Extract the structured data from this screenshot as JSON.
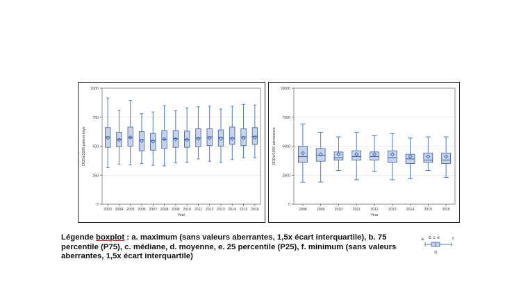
{
  "colors": {
    "box_fill": "#c6d3ea",
    "box_stroke": "#3f5f97",
    "whisker": "#4e79b9",
    "mean_marker": "#2a58b8",
    "grid": "#e4e4e4",
    "frame": "#222222"
  },
  "chart_data": [
    {
      "type": "boxplot",
      "xlabel": "Year",
      "ylabel": "DDDs/1000 patient days",
      "ylim": [
        0,
        1000
      ],
      "yticks": [
        "0",
        "250",
        "500",
        "750",
        "1000"
      ],
      "grid": true,
      "categories": [
        "2003",
        "2004",
        "2005",
        "2006",
        "2007",
        "2008",
        "2009",
        "2010",
        "2011",
        "2012",
        "2013",
        "2014",
        "2015",
        "2016"
      ],
      "series": [
        {
          "max": [
            915,
            810,
            895,
            780,
            795,
            850,
            805,
            830,
            840,
            845,
            820,
            845,
            860,
            855
          ],
          "q3": [
            660,
            620,
            665,
            625,
            610,
            635,
            635,
            630,
            650,
            650,
            640,
            665,
            650,
            660
          ],
          "median": [
            580,
            560,
            575,
            555,
            550,
            560,
            565,
            560,
            570,
            580,
            575,
            570,
            580,
            585
          ],
          "mean": [
            570,
            555,
            575,
            545,
            540,
            560,
            560,
            555,
            565,
            570,
            565,
            565,
            570,
            575
          ],
          "q1": [
            490,
            495,
            500,
            460,
            465,
            480,
            490,
            490,
            495,
            505,
            500,
            515,
            505,
            515
          ],
          "min": [
            315,
            345,
            340,
            350,
            335,
            330,
            355,
            360,
            390,
            370,
            360,
            385,
            400,
            400
          ]
        }
      ]
    },
    {
      "type": "boxplot",
      "xlabel": "Year",
      "ylabel": "DDDs/1000 admissions",
      "ylim": [
        0,
        10000
      ],
      "yticks": [
        "0",
        "2500",
        "5000",
        "7500",
        "10000"
      ],
      "grid": true,
      "categories": [
        "2008",
        "2009",
        "2010",
        "2011",
        "2012",
        "2013",
        "2014",
        "2015",
        "2016"
      ],
      "series": [
        {
          "max": [
            6900,
            6200,
            5800,
            6200,
            5900,
            6100,
            5700,
            5800,
            5800
          ],
          "q3": [
            5000,
            4800,
            4500,
            4600,
            4500,
            4600,
            4300,
            4400,
            4400
          ],
          "median": [
            4100,
            4200,
            4000,
            4100,
            4100,
            4000,
            3900,
            3800,
            3800
          ],
          "mean": [
            4400,
            4300,
            4300,
            4300,
            4300,
            4300,
            4100,
            4100,
            4100
          ],
          "q1": [
            3600,
            3700,
            3800,
            3800,
            3800,
            3600,
            3500,
            3600,
            3500
          ],
          "min": [
            1900,
            1900,
            2900,
            2100,
            2800,
            2100,
            2200,
            2900,
            2300
          ]
        }
      ]
    }
  ],
  "legend": {
    "label": "Légende",
    "keyword": "boxplot",
    "rest": " : a. maximum (sans valeurs aberrantes, 1,5x écart interquartile), b. 75 percentile (P75), c. médiane, d. moyenne, e. 25 percentile (P25), f. minimum (sans valeurs aberrantes, 1,5x écart interquartile)",
    "icon_letters": [
      "a",
      "b",
      "c",
      "e",
      "f",
      "d"
    ]
  }
}
